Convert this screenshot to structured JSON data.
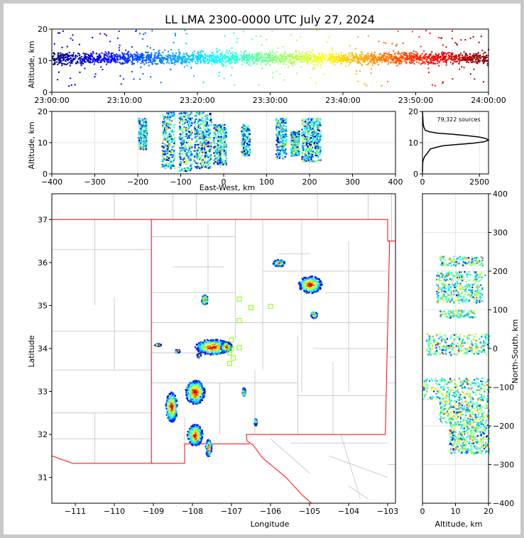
{
  "title": "LL LMA 2300-0000 UTC July 27, 2024",
  "colors": {
    "frame": "#c8c8c8",
    "state_border": "#ff0000",
    "county": "#c0c0c0",
    "marker": "#80ff00"
  },
  "chart_data": [
    {
      "type": "scatter",
      "id": "time-altitude",
      "xlabel": "",
      "ylabel": "Altitude, km",
      "x_ticks": [
        "23:00:00",
        "23:10:00",
        "23:20:00",
        "23:30:00",
        "23:40:00",
        "23:50:00",
        "24:00:00"
      ],
      "y_ticks": [
        "0",
        "10",
        "20"
      ],
      "xlim": [
        "23:00:00",
        "24:00:00"
      ],
      "ylim": [
        0,
        20
      ],
      "color_scale": "jet by time",
      "altitude_band_km": [
        5,
        17
      ],
      "core_altitude_km": [
        8,
        14
      ]
    },
    {
      "type": "scatter",
      "id": "eastwest-altitude",
      "xlabel": "East-West, km",
      "ylabel": "Altitude, km",
      "x_ticks": [
        "−400",
        "−300",
        "−200",
        "−100",
        "0",
        "100",
        "200",
        "300",
        "400"
      ],
      "y_ticks": [
        "0",
        "10",
        "20"
      ],
      "xlim": [
        -400,
        400
      ],
      "ylim": [
        0,
        20
      ],
      "clusters": [
        {
          "x_km": [
            -200,
            -180
          ],
          "alt_km": [
            8,
            18
          ]
        },
        {
          "x_km": [
            -145,
            -115
          ],
          "alt_km": [
            2,
            20
          ]
        },
        {
          "x_km": [
            -105,
            -75
          ],
          "alt_km": [
            1,
            20
          ]
        },
        {
          "x_km": [
            -70,
            -30
          ],
          "alt_km": [
            2,
            20
          ]
        },
        {
          "x_km": [
            -25,
            5
          ],
          "alt_km": [
            3,
            16
          ]
        },
        {
          "x_km": [
            40,
            60
          ],
          "alt_km": [
            6,
            16
          ]
        },
        {
          "x_km": [
            120,
            145
          ],
          "alt_km": [
            5,
            18
          ]
        },
        {
          "x_km": [
            155,
            175
          ],
          "alt_km": [
            6,
            14
          ]
        },
        {
          "x_km": [
            180,
            225
          ],
          "alt_km": [
            4,
            18
          ]
        }
      ]
    },
    {
      "type": "line",
      "id": "altitude-histogram",
      "annotation": "79,322 sources",
      "x_ticks": [
        "0",
        "2500"
      ],
      "y_ticks": [
        "0",
        "10",
        "20"
      ],
      "xlim": [
        0,
        2900
      ],
      "ylim": [
        0,
        20
      ],
      "profile": [
        [
          0,
          20
        ],
        [
          15,
          18
        ],
        [
          30,
          16
        ],
        [
          60,
          15
        ],
        [
          120,
          14
        ],
        [
          300,
          13.5
        ],
        [
          700,
          13
        ],
        [
          1300,
          12.7
        ],
        [
          2000,
          12.2
        ],
        [
          2500,
          11.8
        ],
        [
          2800,
          11.3
        ],
        [
          2900,
          10.8
        ],
        [
          2700,
          10.3
        ],
        [
          2200,
          9.8
        ],
        [
          1500,
          9.4
        ],
        [
          900,
          9
        ],
        [
          600,
          8.5
        ],
        [
          350,
          8
        ],
        [
          250,
          7
        ],
        [
          200,
          6.5
        ],
        [
          120,
          5.8
        ],
        [
          60,
          5
        ],
        [
          15,
          4
        ],
        [
          5,
          2.5
        ],
        [
          0,
          0.5
        ]
      ]
    },
    {
      "type": "scatter",
      "id": "plan-view",
      "xlabel": "Longitude",
      "ylabel": "Latitude",
      "x_ticks": [
        "−111",
        "−110",
        "−109",
        "−108",
        "−107",
        "−106",
        "−105",
        "−104",
        "−103"
      ],
      "y_ticks": [
        "31",
        "32",
        "33",
        "34",
        "35",
        "36",
        "37"
      ],
      "xlim": [
        -111.6,
        -102.8
      ],
      "ylim": [
        30.4,
        37.6
      ],
      "storm_cells": [
        {
          "lon": -105.8,
          "lat": 36.0,
          "rx": 0.15,
          "ry": 0.08
        },
        {
          "lon": -105.0,
          "lat": 35.5,
          "rx": 0.3,
          "ry": 0.2
        },
        {
          "lon": -104.9,
          "lat": 34.8,
          "rx": 0.08,
          "ry": 0.08
        },
        {
          "lon": -107.7,
          "lat": 35.15,
          "rx": 0.08,
          "ry": 0.12
        },
        {
          "lon": -107.5,
          "lat": 34.05,
          "rx": 0.45,
          "ry": 0.18
        },
        {
          "lon": -107.15,
          "lat": 34.05,
          "rx": 0.15,
          "ry": 0.12
        },
        {
          "lon": -107.85,
          "lat": 33.85,
          "rx": 0.05,
          "ry": 0.05
        },
        {
          "lon": -108.4,
          "lat": 33.95,
          "rx": 0.06,
          "ry": 0.04
        },
        {
          "lon": -108.9,
          "lat": 34.1,
          "rx": 0.08,
          "ry": 0.03
        },
        {
          "lon": -107.95,
          "lat": 33.0,
          "rx": 0.25,
          "ry": 0.28
        },
        {
          "lon": -108.55,
          "lat": 32.65,
          "rx": 0.15,
          "ry": 0.35
        },
        {
          "lon": -107.95,
          "lat": 32.0,
          "rx": 0.2,
          "ry": 0.25
        },
        {
          "lon": -107.6,
          "lat": 31.7,
          "rx": 0.08,
          "ry": 0.2
        },
        {
          "lon": -106.7,
          "lat": 33.0,
          "rx": 0.04,
          "ry": 0.1
        },
        {
          "lon": -106.4,
          "lat": 32.3,
          "rx": 0.03,
          "ry": 0.08
        }
      ],
      "stations": [
        {
          "lon": -106.8,
          "lat": 35.15
        },
        {
          "lon": -106.5,
          "lat": 34.95
        },
        {
          "lon": -106.0,
          "lat": 34.98
        },
        {
          "lon": -106.8,
          "lat": 34.65
        },
        {
          "lon": -107.0,
          "lat": 34.2
        },
        {
          "lon": -107.0,
          "lat": 34.0
        },
        {
          "lon": -107.05,
          "lat": 33.9
        },
        {
          "lon": -106.95,
          "lat": 33.78
        },
        {
          "lon": -107.05,
          "lat": 33.65
        },
        {
          "lon": -106.8,
          "lat": 34.02
        }
      ]
    },
    {
      "type": "scatter",
      "id": "altitude-northsouth",
      "xlabel": "Altitude, km",
      "ylabel": "North-South, km",
      "x_ticks": [
        "0",
        "10",
        "20"
      ],
      "y_ticks": [
        "400",
        "300",
        "200",
        "100",
        "0",
        "−100",
        "−200",
        "−300",
        "−400"
      ],
      "xlim": [
        0,
        20
      ],
      "ylim": [
        -400,
        400
      ],
      "clusters": [
        {
          "ns_km": [
            215,
            240
          ],
          "alt_km": [
            5,
            18
          ]
        },
        {
          "ns_km": [
            175,
            200
          ],
          "alt_km": [
            4,
            19
          ]
        },
        {
          "ns_km": [
            120,
            170
          ],
          "alt_km": [
            4,
            18
          ]
        },
        {
          "ns_km": [
            80,
            100
          ],
          "alt_km": [
            5,
            16
          ]
        },
        {
          "ns_km": [
            -15,
            40
          ],
          "alt_km": [
            1,
            20
          ]
        },
        {
          "ns_km": [
            -130,
            -75
          ],
          "alt_km": [
            0,
            20
          ]
        },
        {
          "ns_km": [
            -190,
            -130
          ],
          "alt_km": [
            5,
            20
          ]
        },
        {
          "ns_km": [
            -270,
            -190
          ],
          "alt_km": [
            8,
            20
          ]
        }
      ]
    }
  ]
}
